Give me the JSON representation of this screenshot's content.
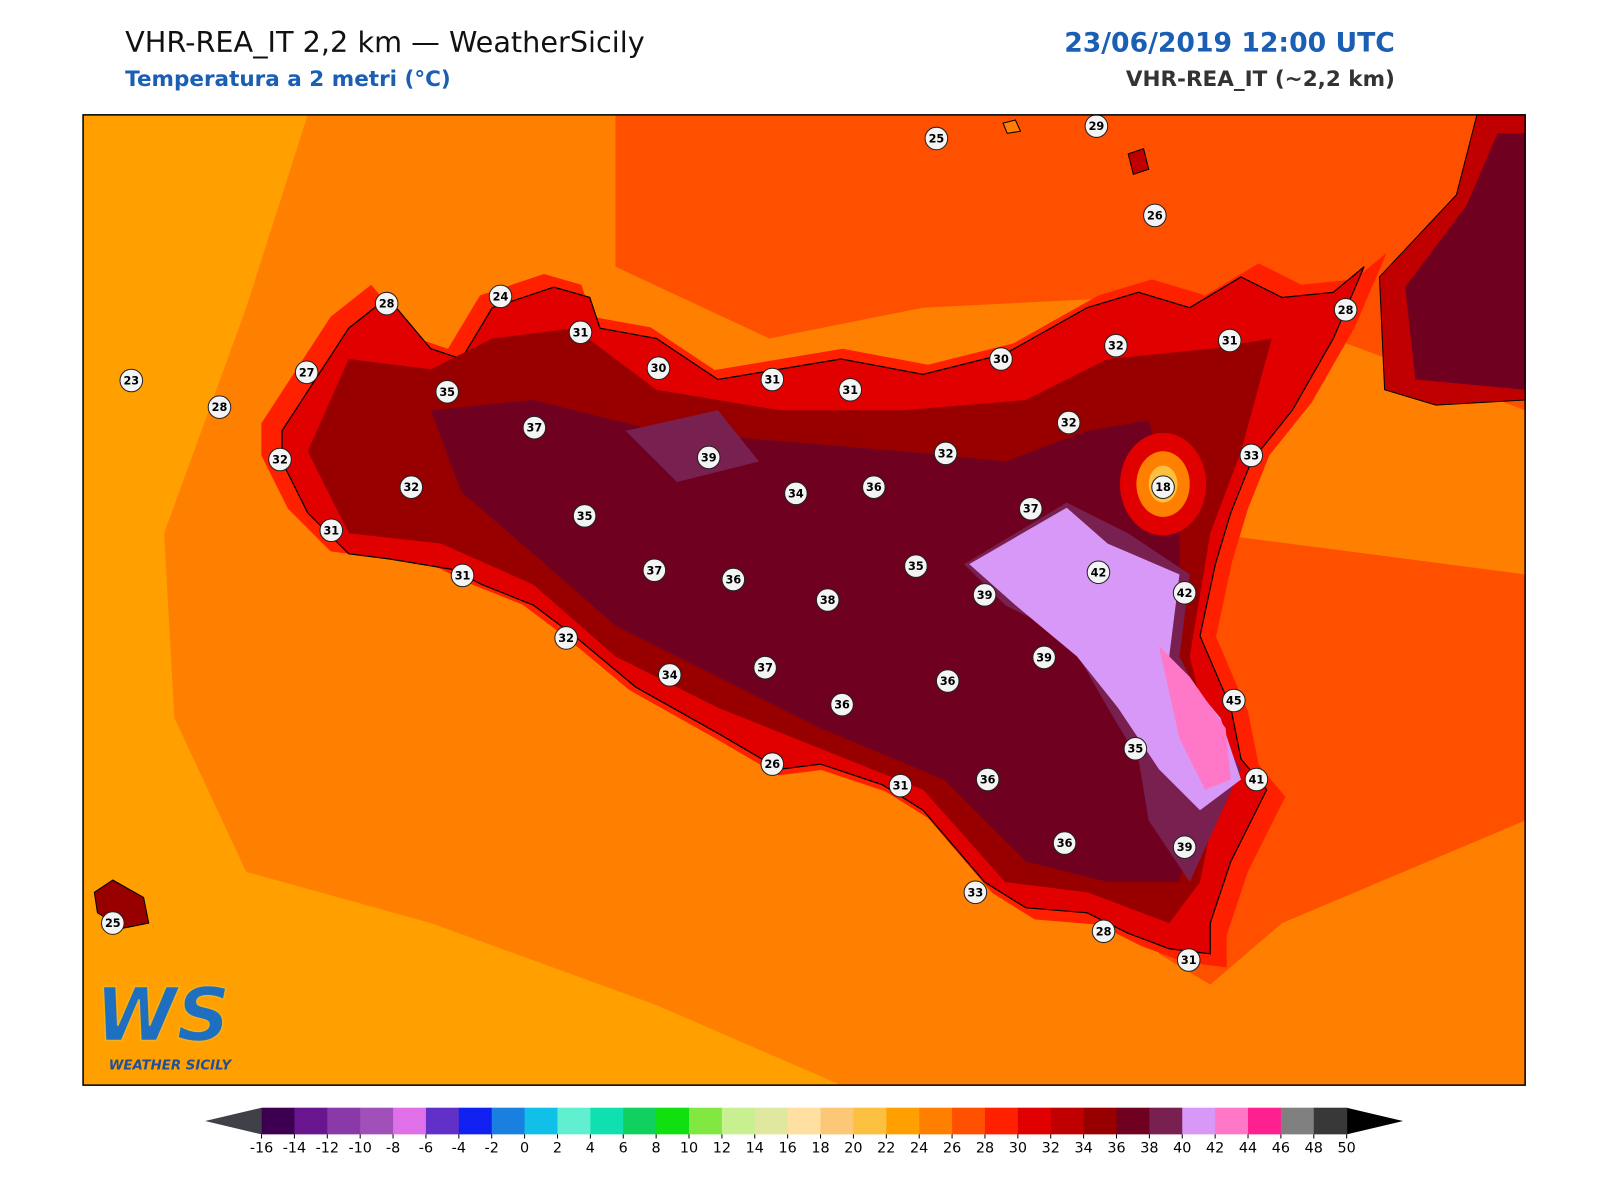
{
  "header": {
    "title": "VHR-REA_IT 2,2 km — WeatherSicily",
    "subtitle": "Temperatura a 2 metri (°C)",
    "datetime": "23/06/2019 12:00 UTC",
    "model": "VHR-REA_IT (~2,2 km)"
  },
  "stations": [
    25,
    29,
    26,
    28,
    24,
    31,
    30,
    31,
    31,
    30,
    32,
    31,
    28,
    23,
    27,
    28,
    35,
    37,
    39,
    32,
    32,
    33,
    32,
    32,
    34,
    36,
    18,
    35,
    37,
    31,
    31,
    37,
    36,
    35,
    38,
    39,
    42,
    42,
    32,
    39,
    34,
    37,
    36,
    36,
    45,
    35,
    26,
    31,
    36,
    41,
    36,
    39,
    33,
    25,
    28,
    31
  ],
  "colorbar": {
    "ticks": [
      -16,
      -14,
      -12,
      -10,
      -8,
      -6,
      -4,
      -2,
      0,
      2,
      4,
      6,
      8,
      10,
      12,
      14,
      16,
      18,
      20,
      22,
      24,
      26,
      28,
      30,
      32,
      34,
      36,
      38,
      40,
      42,
      44,
      46,
      48,
      50
    ],
    "colors": [
      "#3d0050",
      "#6a1590",
      "#8a3aa8",
      "#a050b8",
      "#e070e8",
      "#6030c8",
      "#1020f0",
      "#1a80e0",
      "#10c0e8",
      "#60f0d0",
      "#10e0b0",
      "#10d060",
      "#10e010",
      "#80e840",
      "#c8f090",
      "#e0e8a0",
      "#ffe0a0",
      "#fcc878",
      "#fcc040",
      "#ffa000",
      "#ff8000",
      "#ff5000",
      "#ff2000",
      "#e00000",
      "#c00000",
      "#980000",
      "#700020",
      "#782050",
      "#d898f8",
      "#ff78c8",
      "#ff2090",
      "#808080",
      "#383838"
    ],
    "under_color": "#404048",
    "over_color": "#000000"
  },
  "logo": {
    "mark": "WS",
    "name": "WEATHER SICILY"
  }
}
